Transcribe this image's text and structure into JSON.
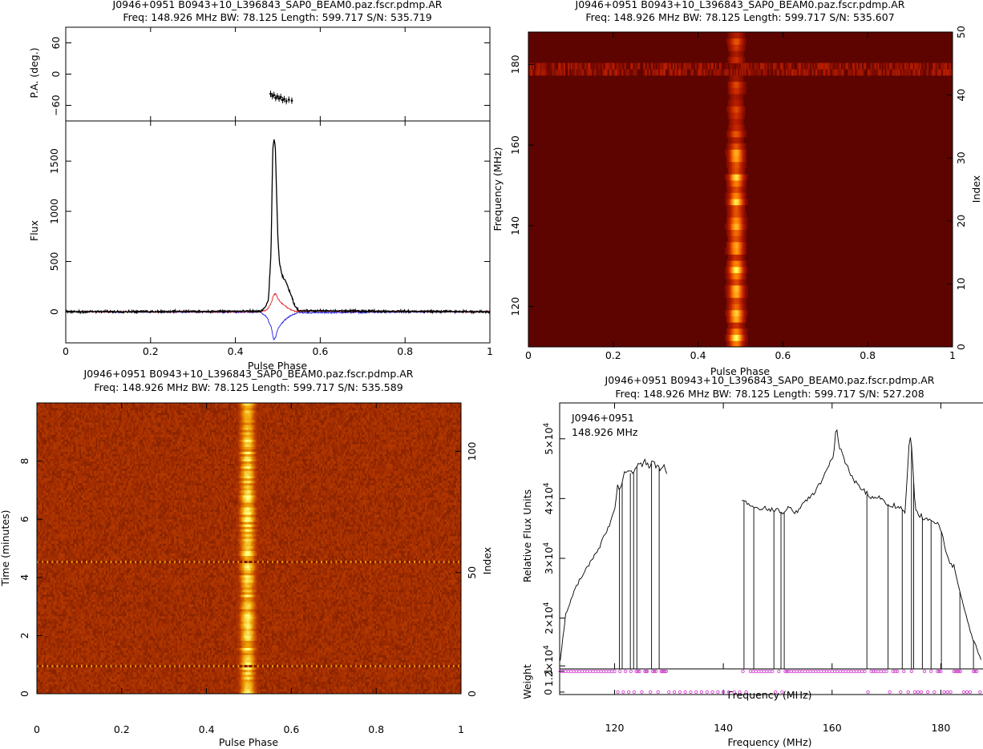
{
  "chart_data": [
    {
      "type": "line",
      "panel": "profile",
      "title": "J0946+0951  B0943+10_L396843_SAP0_BEAM0.paz.fscr.pdmp.AR",
      "subtitle": "Freq: 148.926 MHz BW: 78.125 Length: 599.717 S/N: 535.719",
      "xlabel": "Pulse Phase",
      "xlim": [
        0,
        1
      ],
      "xticks": [
        "0",
        "0.2",
        "0.4",
        "0.6",
        "0.8",
        "1"
      ],
      "pa": {
        "ylabel": "P.A. (deg.)",
        "ylim": [
          -90,
          90
        ],
        "yticks": [
          "60",
          "0",
          "−60"
        ],
        "points": [
          {
            "x": 0.483,
            "y": -38
          },
          {
            "x": 0.487,
            "y": -42
          },
          {
            "x": 0.491,
            "y": -40
          },
          {
            "x": 0.495,
            "y": -46
          },
          {
            "x": 0.499,
            "y": -43
          },
          {
            "x": 0.503,
            "y": -47
          },
          {
            "x": 0.507,
            "y": -44
          },
          {
            "x": 0.511,
            "y": -50
          },
          {
            "x": 0.515,
            "y": -48
          },
          {
            "x": 0.52,
            "y": -52
          },
          {
            "x": 0.526,
            "y": -49
          },
          {
            "x": 0.533,
            "y": -51
          }
        ]
      },
      "flux": {
        "ylabel": "Flux",
        "ylim": [
          -310,
          1900
        ],
        "yticks": [
          "0",
          "500",
          "1000",
          "1500"
        ],
        "series": [
          {
            "name": "",
            "color": "#000000",
            "x": [
              0,
              0.46,
              0.47,
              0.478,
              0.484,
              0.488,
              0.491,
              0.494,
              0.497,
              0.5,
              0.504,
              0.51,
              0.52,
              0.53,
              0.54,
              0.55,
              1
            ],
            "y": [
              0,
              5,
              40,
              120,
              600,
              1600,
              1720,
              1650,
              1200,
              750,
              480,
              360,
              290,
              180,
              60,
              10,
              0
            ]
          },
          {
            "name": "",
            "color": "#e02020",
            "x": [
              0,
              0.46,
              0.475,
              0.485,
              0.49,
              0.495,
              0.5,
              0.51,
              0.52,
              0.53,
              0.54,
              1
            ],
            "y": [
              0,
              0,
              20,
              90,
              170,
              180,
              130,
              80,
              50,
              20,
              5,
              0
            ]
          },
          {
            "name": "",
            "color": "#2020e0",
            "x": [
              0,
              0.46,
              0.475,
              0.485,
              0.49,
              0.495,
              0.5,
              0.51,
              0.52,
              0.53,
              0.545,
              1
            ],
            "y": [
              0,
              -5,
              -60,
              -160,
              -280,
              -250,
              -170,
              -110,
              -70,
              -40,
              -10,
              0
            ]
          }
        ]
      }
    },
    {
      "type": "heatmap",
      "panel": "frequency-phase",
      "title": "J0946+0951  B0943+10_L396843_SAP0_BEAM0.paz.fscr.pdmp.AR",
      "subtitle": "Freq: 148.926 MHz BW: 78.125 Length: 599.717 S/N: 535.607",
      "xlabel": "Pulse Phase",
      "ylabel": "Frequency (MHz)",
      "ylabel_right": "Index",
      "xlim": [
        0,
        1
      ],
      "ylim": [
        110,
        188
      ],
      "right_ylim": [
        0,
        50
      ],
      "xticks": [
        "0",
        "0.2",
        "0.4",
        "0.6",
        "0.8",
        "1"
      ],
      "yticks": [
        "120",
        "140",
        "160",
        "180"
      ],
      "right_yticks": [
        "0",
        "10",
        "20",
        "30",
        "40",
        "50"
      ],
      "pulse_center": 0.49,
      "pulse_width": 0.012,
      "rfi_index": 44.5,
      "colormap": [
        "#5a0000",
        "#c02000",
        "#ff8000",
        "#ffff60"
      ]
    },
    {
      "type": "heatmap",
      "panel": "time-phase",
      "title": "J0946+0951  B0943+10_L396843_SAP0_BEAM0.paz.fscr.pdmp.AR",
      "subtitle": "Freq: 148.926 MHz BW: 78.125 Length: 599.717 S/N: 535.589",
      "xlabel": "Pulse Phase",
      "ylabel": "Time (minutes)",
      "ylabel_right": "Index",
      "xlim": [
        0,
        1
      ],
      "ylim": [
        0,
        10
      ],
      "right_ylim": [
        0,
        120
      ],
      "xticks": [
        "0",
        "0.2",
        "0.4",
        "0.6",
        "0.8",
        "1"
      ],
      "yticks": [
        "0",
        "2",
        "4",
        "6",
        "8"
      ],
      "right_yticks": [
        "0",
        "50",
        "100"
      ],
      "pulse_center": 0.497,
      "pulse_width": 0.013,
      "rfi_minutes": [
        0.95,
        4.55
      ],
      "colormap": [
        "#7a1500",
        "#c04000",
        "#f0a000",
        "#ffff80"
      ]
    },
    {
      "type": "line",
      "panel": "bandpass",
      "title": "J0946+0951  B0943+10_L396843_SAP0_BEAM0.paz.fscr.pdmp.AR",
      "subtitle": "Freq: 148.926 MHz BW: 78.125 Length: 599.717 S/N: 527.208",
      "annotation": [
        "J0946+0951",
        "148.926 MHz"
      ],
      "xlabel": "Frequency (MHz)",
      "ylabel": "Relative Flux Units",
      "xlim": [
        109.9,
        187.9
      ],
      "ylim": [
        11500,
        56000
      ],
      "xticks": [
        "120",
        "140",
        "160",
        "180"
      ],
      "yticks": [
        {
          "value": 12000,
          "base": "1.2×10",
          "exp": "4"
        },
        {
          "value": 20000,
          "base": "2×10",
          "exp": "4"
        },
        {
          "value": 30000,
          "base": "3×10",
          "exp": "4"
        },
        {
          "value": 40000,
          "base": "4×10",
          "exp": "4"
        },
        {
          "value": 50000,
          "base": "5×10",
          "exp": "4"
        }
      ],
      "series": [
        {
          "name": "",
          "color": "#000000",
          "x": [
            110.0,
            111,
            113,
            115,
            117,
            119,
            120.1,
            120.5,
            121.2,
            121.6,
            122.5,
            123.2,
            123.8,
            124.4,
            125.0,
            125.6,
            126.3,
            127.0,
            127.7,
            128.4,
            129.1,
            129.6,
            143.4,
            144.0,
            145.2,
            146.5,
            147.8,
            149.0,
            150.0,
            151.0,
            152.0,
            153.5,
            155.0,
            156.5,
            158.0,
            159.3,
            160.3,
            160.8,
            161.3,
            162.3,
            163.5,
            164.8,
            166.2,
            167.5,
            168.8,
            170.0,
            171.2,
            172.4,
            173.4,
            174.3,
            174.7,
            175.2,
            176.0,
            177.2,
            178.6,
            179.8,
            180.6,
            181.5,
            182.4,
            183.1,
            184.1,
            185.2,
            186.4,
            187.4
          ],
          "y": [
            13000,
            20500,
            25500,
            28500,
            31500,
            35500,
            38500,
            42000,
            41500,
            44000,
            44800,
            43800,
            45000,
            45900,
            45300,
            46200,
            45200,
            46100,
            45700,
            44800,
            45400,
            44200,
            39800,
            39600,
            38700,
            38200,
            38400,
            37800,
            38100,
            37400,
            38600,
            37600,
            39400,
            40800,
            42800,
            45200,
            47200,
            52300,
            48700,
            46300,
            43900,
            42300,
            40800,
            40200,
            40300,
            39200,
            38700,
            38600,
            37700,
            51000,
            48200,
            38800,
            37300,
            36400,
            36200,
            35600,
            32700,
            29200,
            28600,
            25700,
            22300,
            18400,
            15300,
            12900
          ]
        }
      ],
      "dropouts": [
        120.9,
        121.4,
        122.9,
        123.5,
        124.1,
        126.8,
        128.2,
        143.8,
        145.6,
        149.3,
        150.6,
        151.2,
        166.4,
        170.3,
        172.9,
        174.6,
        175.0,
        176.6,
        178.2,
        180.1,
        183.5,
        186.0
      ],
      "weight": {
        "ylabel": "Weight",
        "xlabel": "Frequency (MHz)",
        "ylim": [
          -0.12,
          1.12
        ],
        "yticks": [
          "0",
          "1"
        ],
        "color": "#d040d0",
        "x": [
          110.0,
          111.0,
          112.0,
          113.0,
          114.0,
          115.0,
          116.0,
          117.0,
          118.0,
          119.0,
          120.0,
          120.6,
          121.0,
          121.6,
          122.0,
          122.6,
          123.0,
          123.6,
          124.0,
          124.6,
          125.0,
          125.6,
          126.0,
          126.6,
          127.0,
          127.6,
          128.0,
          128.6,
          129.0,
          129.5,
          130.0,
          131.0,
          132.0,
          133.0,
          134.0,
          135.0,
          136.0,
          137.0,
          138.0,
          139.0,
          140.0,
          141.0,
          142.0,
          143.0,
          143.6,
          144.2,
          145.0,
          146.0,
          147.0,
          148.0,
          149.0,
          149.6,
          150.2,
          150.8,
          151.4,
          152.0,
          153.0,
          154.0,
          155.0,
          156.0,
          157.0,
          158.0,
          159.0,
          160.0,
          161.0,
          162.0,
          163.0,
          164.0,
          165.0,
          166.0,
          166.6,
          167.2,
          168.0,
          169.0,
          170.0,
          170.6,
          171.2,
          172.0,
          172.6,
          173.2,
          174.0,
          174.6,
          175.2,
          175.8,
          176.4,
          177.0,
          177.6,
          178.2,
          178.8,
          179.4,
          180.0,
          180.6,
          181.2,
          181.8,
          182.4,
          183.0,
          183.6,
          184.2,
          184.8,
          185.4,
          186.0,
          186.6,
          187.2
        ],
        "y": [
          1,
          1,
          1,
          1,
          1,
          1,
          1,
          1,
          1,
          1,
          1,
          0,
          1,
          0,
          1,
          0,
          1,
          0,
          1,
          1,
          0,
          1,
          1,
          0,
          1,
          1,
          0,
          1,
          1,
          1,
          0,
          0,
          0,
          0,
          0,
          0,
          0,
          0,
          0,
          0,
          0,
          0,
          0,
          0,
          1,
          0,
          1,
          1,
          1,
          1,
          1,
          0,
          1,
          0,
          1,
          1,
          1,
          1,
          1,
          1,
          1,
          1,
          1,
          1,
          1,
          1,
          1,
          1,
          1,
          1,
          0,
          1,
          1,
          1,
          1,
          0,
          1,
          1,
          0,
          1,
          0,
          1,
          0,
          0,
          0,
          1,
          0,
          1,
          0,
          1,
          1,
          0,
          0,
          0,
          1,
          1,
          1,
          0,
          0,
          0,
          1,
          1,
          0
        ]
      }
    }
  ]
}
